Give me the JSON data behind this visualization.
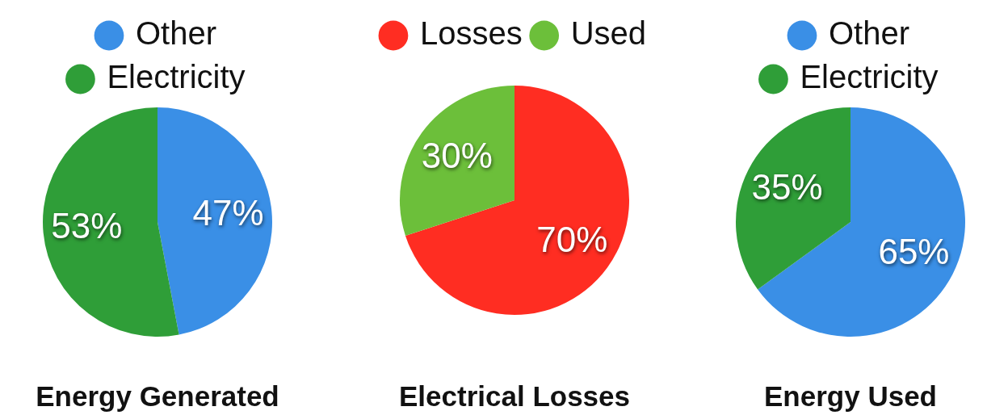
{
  "chart_data": [
    {
      "type": "pie",
      "title": "Energy Generated",
      "categories": [
        "Other",
        "Electricity"
      ],
      "values": [
        47,
        53
      ],
      "colors": [
        "#3a8fe6",
        "#2f9e38"
      ],
      "value_labels": [
        "47%",
        "53%"
      ],
      "legend": "top"
    },
    {
      "type": "pie",
      "title": "Electrical Losses",
      "categories": [
        "Losses",
        "Used"
      ],
      "values": [
        70,
        30
      ],
      "colors": [
        "#ff2d22",
        "#6cbf3a"
      ],
      "value_labels": [
        "70%",
        "30%"
      ],
      "legend": "top"
    },
    {
      "type": "pie",
      "title": "Energy Used",
      "categories": [
        "Other",
        "Electricity"
      ],
      "values": [
        65,
        35
      ],
      "colors": [
        "#3a8fe6",
        "#2f9e38"
      ],
      "value_labels": [
        "65%",
        "35%"
      ],
      "legend": "top"
    }
  ]
}
